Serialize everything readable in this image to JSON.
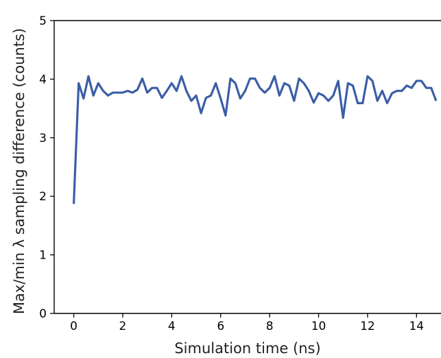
{
  "chart_data": {
    "type": "line",
    "title": "",
    "xlabel": "Simulation time (ns)",
    "ylabel": "Max/min λ sampling difference (counts)",
    "xlim": [
      -0.8,
      15.0
    ],
    "ylim": [
      0,
      5
    ],
    "xticks": [
      0,
      2,
      4,
      6,
      8,
      10,
      12,
      14
    ],
    "xtick_labels": [
      "0",
      "2",
      "4",
      "6",
      "8",
      "10",
      "12",
      "14"
    ],
    "yticks": [
      0,
      1,
      2,
      3,
      4,
      5
    ],
    "ytick_labels": [
      "0",
      "1",
      "2",
      "3",
      "4",
      "5"
    ],
    "grid": false,
    "legend": "none",
    "series": [
      {
        "color": "#3b5ea6",
        "x": [
          0.0,
          0.2,
          0.4,
          0.6,
          0.8,
          1.0,
          1.2,
          1.4,
          1.6,
          1.8,
          2.0,
          2.2,
          2.4,
          2.6,
          2.8,
          3.0,
          3.2,
          3.4,
          3.6,
          3.8,
          4.0,
          4.2,
          4.4,
          4.6,
          4.8,
          5.0,
          5.2,
          5.4,
          5.6,
          5.8,
          6.0,
          6.2,
          6.4,
          6.6,
          6.8,
          7.0,
          7.2,
          7.4,
          7.6,
          7.8,
          8.0,
          8.2,
          8.4,
          8.6,
          8.8,
          9.0,
          9.2,
          9.4,
          9.6,
          9.8,
          10.0,
          10.2,
          10.4,
          10.6,
          10.8,
          11.0,
          11.2,
          11.4,
          11.6,
          11.8,
          12.0,
          12.2,
          12.4,
          12.6,
          12.8,
          13.0,
          13.2,
          13.4,
          13.6,
          13.8,
          14.0,
          14.2,
          14.4,
          14.6,
          14.8
        ],
        "y": [
          1.87,
          3.93,
          3.67,
          4.05,
          3.72,
          3.93,
          3.8,
          3.72,
          3.77,
          3.77,
          3.77,
          3.8,
          3.77,
          3.82,
          4.01,
          3.77,
          3.85,
          3.85,
          3.68,
          3.8,
          3.93,
          3.8,
          4.05,
          3.8,
          3.63,
          3.72,
          3.42,
          3.68,
          3.72,
          3.93,
          3.67,
          3.38,
          4.01,
          3.93,
          3.67,
          3.8,
          4.01,
          4.01,
          3.85,
          3.77,
          3.85,
          4.05,
          3.72,
          3.93,
          3.89,
          3.63,
          4.01,
          3.93,
          3.8,
          3.6,
          3.76,
          3.72,
          3.63,
          3.72,
          3.97,
          3.34,
          3.93,
          3.89,
          3.59,
          3.59,
          4.05,
          3.97,
          3.63,
          3.8,
          3.59,
          3.76,
          3.8,
          3.8,
          3.89,
          3.85,
          3.97,
          3.97,
          3.85,
          3.85,
          3.63
        ]
      }
    ]
  }
}
